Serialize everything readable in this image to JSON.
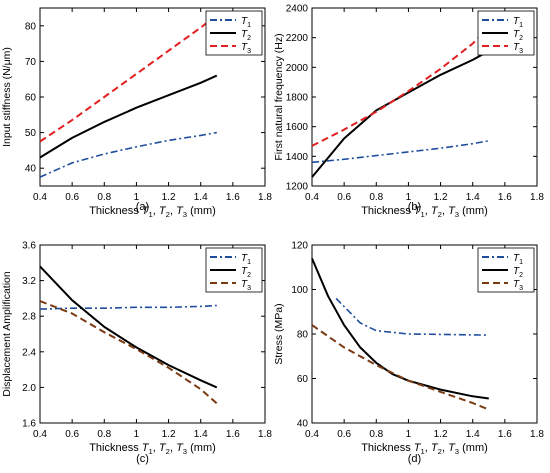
{
  "chart_data": [
    {
      "type": "line",
      "caption": "(a)",
      "xlabel": "Thickness T1, T2, T3 (mm)",
      "ylabel": "Input stiffness (N/μm)",
      "xlim": [
        0.4,
        1.8
      ],
      "ylim": [
        35,
        85
      ],
      "xticks": [
        "0.4",
        "0.6",
        "0.8",
        "1",
        "1.2",
        "1.4",
        "1.6",
        "1.8"
      ],
      "yticks": [
        "40",
        "50",
        "60",
        "70",
        "80"
      ],
      "grid": false,
      "legend": "top-right",
      "series": [
        {
          "name": "T1",
          "color": "#1f4e9c",
          "style": "dashdot",
          "x": [
            0.4,
            0.6,
            0.8,
            1.0,
            1.2,
            1.4,
            1.5
          ],
          "y": [
            37.5,
            41.5,
            44.0,
            46.0,
            47.8,
            49.2,
            50.0
          ]
        },
        {
          "name": "T2",
          "color": "#000000",
          "style": "solid",
          "x": [
            0.4,
            0.6,
            0.8,
            1.0,
            1.2,
            1.4,
            1.5
          ],
          "y": [
            43.0,
            48.5,
            53.0,
            57.0,
            60.5,
            64.0,
            66.0
          ]
        },
        {
          "name": "T3",
          "color": "#e02020",
          "style": "dashed",
          "x": [
            0.4,
            0.6,
            0.8,
            1.0,
            1.2,
            1.4,
            1.5
          ],
          "y": [
            47.5,
            53.5,
            60.0,
            66.5,
            73.0,
            79.5,
            83.0
          ]
        }
      ]
    },
    {
      "type": "line",
      "caption": "(b)",
      "xlabel": "Thickness T1, T2, T3 (mm)",
      "ylabel": "First natural frequency (Hz)",
      "xlim": [
        0.4,
        1.8
      ],
      "ylim": [
        1200,
        2400
      ],
      "xticks": [
        "0.4",
        "0.6",
        "0.8",
        "1",
        "1.2",
        "1.4",
        "1.6",
        "1.8"
      ],
      "yticks": [
        "1200",
        "1400",
        "1600",
        "1800",
        "2000",
        "2200",
        "2400"
      ],
      "grid": false,
      "legend": "top-right",
      "series": [
        {
          "name": "T1",
          "color": "#1f4e9c",
          "style": "dashdot",
          "x": [
            0.4,
            0.6,
            0.8,
            1.0,
            1.2,
            1.4,
            1.5
          ],
          "y": [
            1360,
            1380,
            1405,
            1430,
            1455,
            1485,
            1505
          ]
        },
        {
          "name": "T2",
          "color": "#000000",
          "style": "solid",
          "x": [
            0.4,
            0.6,
            0.8,
            1.0,
            1.2,
            1.4,
            1.5
          ],
          "y": [
            1260,
            1520,
            1710,
            1830,
            1950,
            2050,
            2110
          ]
        },
        {
          "name": "T3",
          "color": "#e02020",
          "style": "dashed",
          "x": [
            0.4,
            0.6,
            0.8,
            1.0,
            1.2,
            1.4,
            1.5
          ],
          "y": [
            1470,
            1580,
            1700,
            1840,
            1990,
            2160,
            2270
          ]
        }
      ]
    },
    {
      "type": "line",
      "caption": "(c)",
      "xlabel": "Thickness T1, T2, T3 (mm)",
      "ylabel": "Displacement Amplification",
      "xlim": [
        0.4,
        1.8
      ],
      "ylim": [
        1.6,
        3.6
      ],
      "xticks": [
        "0.4",
        "0.6",
        "0.8",
        "1",
        "1.2",
        "1.4",
        "1.6",
        "1.8"
      ],
      "yticks": [
        "1.6",
        "2.0",
        "2.4",
        "2.8",
        "3.2",
        "3.6"
      ],
      "grid": false,
      "legend": "top-right",
      "series": [
        {
          "name": "T1",
          "color": "#1f4e9c",
          "style": "dashdot",
          "x": [
            0.4,
            0.6,
            0.8,
            1.0,
            1.2,
            1.4,
            1.5
          ],
          "y": [
            2.88,
            2.89,
            2.89,
            2.9,
            2.9,
            2.91,
            2.92
          ]
        },
        {
          "name": "T2",
          "color": "#000000",
          "style": "solid",
          "x": [
            0.4,
            0.6,
            0.8,
            1.0,
            1.2,
            1.4,
            1.5
          ],
          "y": [
            3.36,
            2.98,
            2.68,
            2.45,
            2.25,
            2.08,
            2.0
          ]
        },
        {
          "name": "T3",
          "color": "#7a3a12",
          "style": "dashed",
          "x": [
            0.4,
            0.6,
            0.8,
            1.0,
            1.2,
            1.4,
            1.5
          ],
          "y": [
            2.97,
            2.83,
            2.62,
            2.43,
            2.22,
            1.98,
            1.82
          ]
        }
      ]
    },
    {
      "type": "line",
      "caption": "(d)",
      "xlabel": "Thickness T1, T2, T3 (mm)",
      "ylabel": "Stress (MPa)",
      "xlim": [
        0.4,
        1.8
      ],
      "ylim": [
        40,
        120
      ],
      "xticks": [
        "0.4",
        "0.6",
        "0.8",
        "1",
        "1.2",
        "1.4",
        "1.6",
        "1.8"
      ],
      "yticks": [
        "40",
        "60",
        "80",
        "100",
        "120"
      ],
      "grid": false,
      "legend": "top-right",
      "series": [
        {
          "name": "T1",
          "color": "#1f4e9c",
          "style": "dashdot",
          "x": [
            0.55,
            0.7,
            0.8,
            1.0,
            1.2,
            1.4,
            1.5
          ],
          "y": [
            96,
            85,
            81.5,
            80,
            79.8,
            79.6,
            79.5
          ]
        },
        {
          "name": "T2",
          "color": "#000000",
          "style": "solid",
          "x": [
            0.4,
            0.5,
            0.6,
            0.7,
            0.8,
            0.9,
            1.0,
            1.2,
            1.4,
            1.5
          ],
          "y": [
            114,
            97,
            84,
            74,
            67,
            62,
            59,
            55,
            52,
            51
          ]
        },
        {
          "name": "T3",
          "color": "#7a3a12",
          "style": "dashed",
          "x": [
            0.4,
            0.6,
            0.8,
            1.0,
            1.2,
            1.4,
            1.5
          ],
          "y": [
            84,
            74,
            66,
            59,
            54,
            49,
            46
          ]
        }
      ]
    }
  ]
}
